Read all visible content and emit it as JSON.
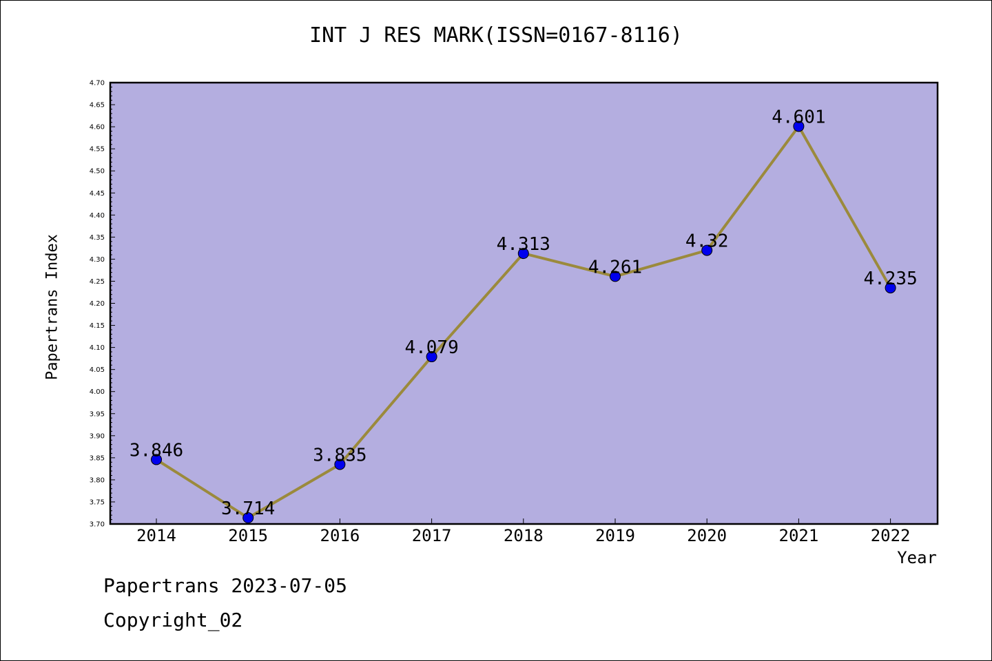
{
  "title": "INT J RES MARK(ISSN=0167-8116)",
  "footer": {
    "line1": "Papertrans 2023-07-05",
    "line2": "Copyright_02"
  },
  "colors": {
    "plot_background": "#b4aee0",
    "line": "#9b8a3c",
    "marker": "#0000ee"
  },
  "chart_data": {
    "type": "line",
    "title": "INT J RES MARK(ISSN=0167-8116)",
    "xlabel": "Year",
    "ylabel": "Papertrans Index",
    "categories": [
      "2014",
      "2015",
      "2016",
      "2017",
      "2018",
      "2019",
      "2020",
      "2021",
      "2022"
    ],
    "series": [
      {
        "values": [
          3.846,
          3.714,
          3.835,
          4.079,
          4.313,
          4.261,
          4.32,
          4.601,
          4.235
        ],
        "value_labels": [
          "3.846",
          "3.714",
          "3.835",
          "4.079",
          "4.313",
          "4.261",
          "4.32",
          "4.601",
          "4.235"
        ]
      }
    ],
    "ylim": [
      3.7,
      4.7
    ],
    "ytick_step": 0.05,
    "yticks": [
      "3.70",
      "3.75",
      "3.80",
      "3.85",
      "3.90",
      "3.95",
      "4.00",
      "4.05",
      "4.10",
      "4.15",
      "4.20",
      "4.25",
      "4.30",
      "4.35",
      "4.40",
      "4.45",
      "4.50",
      "4.55",
      "4.60",
      "4.65",
      "4.70"
    ],
    "grid": false,
    "legend": "none"
  }
}
